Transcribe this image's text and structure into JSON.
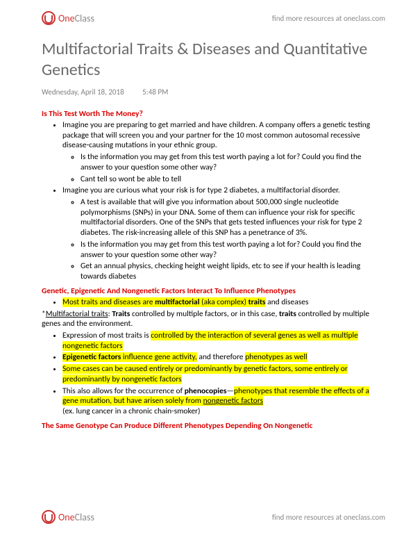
{
  "brand": {
    "one": "One",
    "class": "Class",
    "tagline": "find more resources at oneclass.com"
  },
  "title": "Multifactorial Traits   & Diseases and Quantitative Genetics",
  "meta": {
    "date": "Wednesday, April 18, 2018",
    "time": "5:48 PM"
  },
  "s1": {
    "heading": "Is This Test Worth The Money?",
    "b1": "Imagine you are preparing to get married and have children. A company offers a genetic testing package that will screen you and your partner for the 10 most common autosomal recessive disease-causing mutations in your ethnic group.",
    "b1a": "Is the information you may get from this test worth paying a lot for? Could you find the answer to your question some other way?",
    "b1b": "Cant tell so wont be able to tell",
    "b2": "Imagine you are curious what your risk is for type 2 diabetes, a multifactorial disorder.",
    "b2a": "A test is available that will give you information about 500,000 single nucleotide polymorphisms (SNPs) in your DNA. Some of them can influence your risk for specific multifactorial disorders. One of the SNPs that gets tested influences your risk for type 2 diabetes. The risk-increasing allele of this SNP has a penetrance of 3%.",
    "b2b": "Is the information you may get from this test worth paying a lot for? Could you find the answer to your question some other way?",
    "b2c": "Get an annual physics, checking height weight lipids, etc to see if your health is leading towards diabetes"
  },
  "s2": {
    "heading": "Genetic, Epigenetic And Nongenetic Factors Interact To Influence Phenotypes",
    "b1_pre": "Most traits and diseases are ",
    "b1_mf": "multifactorial",
    "b1_aka": " (aka complex) ",
    "b1_tr": "traits",
    "b1_post": " and diseases",
    "star_pre": "*",
    "star_u": "Multifactorial traits",
    "star_mid": ": ",
    "star_b": "Traits",
    "star_post1": " controlled by multiple factors, or in this case, ",
    "star_b2": "traits",
    "star_post2": " controlled by multiple genes and the environment.",
    "b2_pre": "Expression of most traits is ",
    "b2_hl": "controlled by the interaction of several genes as well as multiple nongenetic factors",
    "b3_ep": "Epigenetic factors",
    "b3_mid": " influence gene activity,",
    "b3_post": " and therefore ",
    "b3_ph": "phenotypes as well",
    "b4": "Some cases can be caused entirely or predominantly by genetic factors, some entirely or predominantly by nongenetic factors",
    "b5_pre": "This also allows for the occurrence of ",
    "b5_pc": "phenocopies",
    "b5_dash": "—",
    "b5_hl1": "phenotypes that resemble the effects of a gene mutation, but have arisen solely from ",
    "b5_ng": "nongenetic factors",
    "b5_ex": "(ex. lung cancer in a chronic chain-smoker)"
  },
  "s3": {
    "heading": "The Same Genotype Can Produce Different Phenotypes Depending On Nongenetic"
  }
}
